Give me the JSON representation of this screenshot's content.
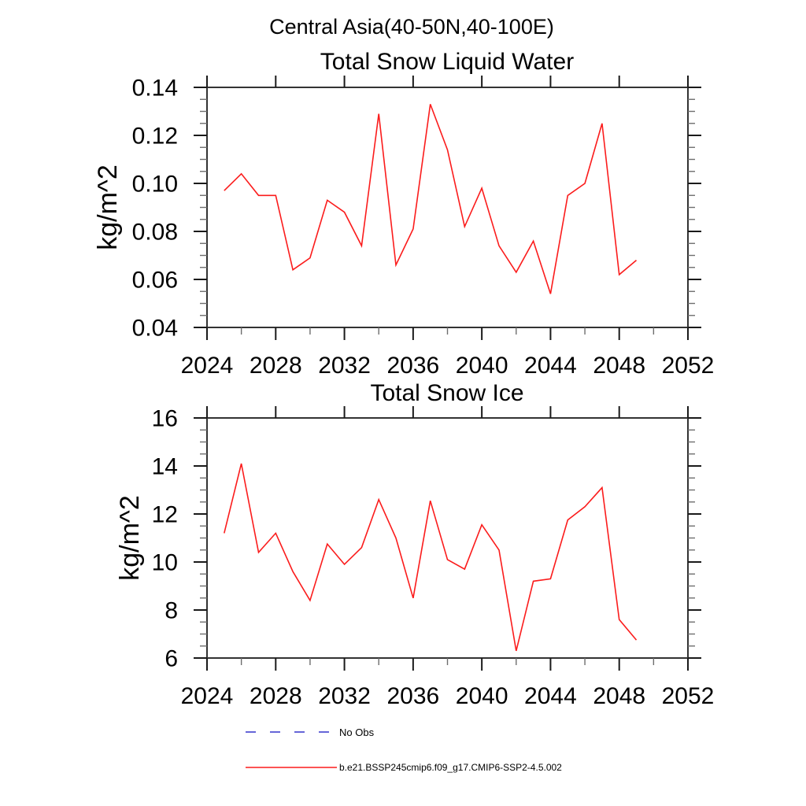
{
  "suptitle": "Central Asia(40-50N,40-100E)",
  "chart_data": [
    {
      "type": "line",
      "title": "Total Snow Liquid Water",
      "ylabel": "kg/m^2",
      "xlabel": "",
      "xlim": [
        2024,
        2052
      ],
      "ylim": [
        0.04,
        0.14
      ],
      "grid": false,
      "legend_position": "below-figure",
      "xtick_labels": [
        "2024",
        "2028",
        "2032",
        "2036",
        "2040",
        "2044",
        "2048",
        "2052"
      ],
      "xticks_major": [
        2024,
        2028,
        2032,
        2036,
        2040,
        2044,
        2048,
        2052
      ],
      "xtick_minor_step": 2,
      "ytick_labels": [
        "0.04",
        "0.06",
        "0.08",
        "0.10",
        "0.12",
        "0.14"
      ],
      "ytick_values": [
        0.04,
        0.06,
        0.08,
        0.1,
        0.12,
        0.14
      ],
      "ytick_minor_step": 0.005,
      "series": [
        {
          "name": "b.e21.BSSP245cmip6.f09_g17.CMIP6-SSP2-4.5.002",
          "color": "#fb1c1c",
          "x": [
            2025,
            2026,
            2027,
            2028,
            2029,
            2030,
            2031,
            2032,
            2033,
            2034,
            2035,
            2036,
            2037,
            2038,
            2039,
            2040,
            2041,
            2042,
            2043,
            2044,
            2045,
            2046,
            2047,
            2048,
            2049
          ],
          "values": [
            0.097,
            0.104,
            0.095,
            0.095,
            0.064,
            0.069,
            0.093,
            0.088,
            0.074,
            0.129,
            0.066,
            0.081,
            0.133,
            0.114,
            0.082,
            0.098,
            0.074,
            0.063,
            0.076,
            0.054,
            0.095,
            0.1,
            0.125,
            0.062,
            0.068
          ]
        }
      ]
    },
    {
      "type": "line",
      "title": "Total Snow Ice",
      "ylabel": "kg/m^2",
      "xlabel": "",
      "xlim": [
        2024,
        2052
      ],
      "ylim": [
        6,
        16
      ],
      "grid": false,
      "legend_position": "below-figure",
      "xtick_labels": [
        "2024",
        "2028",
        "2032",
        "2036",
        "2040",
        "2044",
        "2048",
        "2052"
      ],
      "xticks_major": [
        2024,
        2028,
        2032,
        2036,
        2040,
        2044,
        2048,
        2052
      ],
      "xtick_minor_step": 2,
      "ytick_labels": [
        "6",
        "8",
        "10",
        "12",
        "14",
        "16"
      ],
      "ytick_values": [
        6,
        8,
        10,
        12,
        14,
        16
      ],
      "ytick_minor_step": 0.5,
      "series": [
        {
          "name": "b.e21.BSSP245cmip6.f09_g17.CMIP6-SSP2-4.5.002",
          "color": "#fb1c1c",
          "x": [
            2025,
            2026,
            2027,
            2028,
            2029,
            2030,
            2031,
            2032,
            2033,
            2034,
            2035,
            2036,
            2037,
            2038,
            2039,
            2040,
            2041,
            2042,
            2043,
            2044,
            2045,
            2046,
            2047,
            2048,
            2049
          ],
          "values": [
            11.2,
            14.1,
            10.4,
            11.2,
            9.6,
            8.4,
            10.75,
            9.9,
            10.6,
            12.6,
            11.0,
            8.5,
            12.55,
            10.1,
            9.7,
            11.55,
            10.5,
            6.3,
            9.2,
            9.3,
            11.75,
            12.3,
            13.1,
            7.6,
            6.75
          ]
        }
      ]
    }
  ],
  "legend": [
    {
      "label": "No Obs",
      "style": "dashed",
      "color": "#6666d8"
    },
    {
      "label": "b.e21.BSSP245cmip6.f09_g17.CMIP6-SSP2-4.5.002",
      "style": "solid",
      "color": "#fb1c1c"
    }
  ]
}
